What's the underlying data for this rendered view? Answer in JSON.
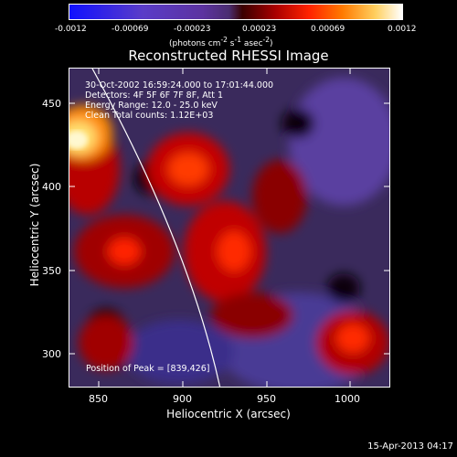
{
  "colorbar": {
    "ticks": [
      "-0.0012",
      "-0.00069",
      "-0.00023",
      "0.00023",
      "0.00069",
      "0.0012"
    ],
    "units_html": "(photons cm<sup>-2</sup> s<sup>-1</sup> asec<sup>-2</sup>)"
  },
  "title": "Reconstructed RHESSI Image",
  "info": {
    "line1": "30-Oct-2002 16:59:24.000 to 17:01:44.000",
    "line2": "Detectors: 4F 5F 6F 7F 8F, Att 1",
    "line3": "Energy Range: 12.0 - 25.0 keV",
    "line4": "Clean     Total counts: 1.12E+03",
    "peak": "Position of Peak = [839,426]"
  },
  "axes": {
    "x_ticks": [
      "850",
      "900",
      "950",
      "1000"
    ],
    "y_ticks": [
      "450",
      "400",
      "350",
      "300"
    ],
    "x_title": "Heliocentric X (arcsec)",
    "y_title": "Heliocentric Y (arcsec)"
  },
  "timestamp": "15-Apr-2013 04:17"
}
